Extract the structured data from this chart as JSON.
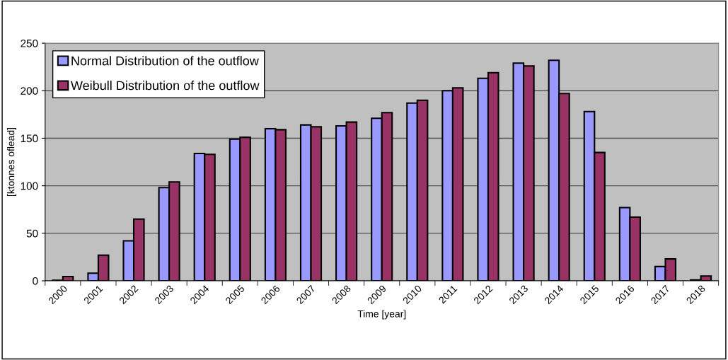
{
  "chart_data": {
    "type": "bar",
    "xlabel": "Time [year]",
    "ylabel": "[ktonnes oflead]",
    "categories": [
      "2000",
      "2001",
      "2002",
      "2003",
      "2004",
      "2005",
      "2006",
      "2007",
      "2008",
      "2009",
      "2010",
      "2011",
      "2012",
      "2013",
      "2014",
      "2015",
      "2016",
      "2017",
      "2018"
    ],
    "series": [
      {
        "name": "Normal Distribution of the outflow",
        "color": "#9999ff",
        "values": [
          0.5,
          8,
          42,
          98,
          134,
          149,
          160,
          164,
          163,
          171,
          187,
          200,
          213,
          229,
          232,
          178,
          77,
          15,
          1
        ]
      },
      {
        "name": "Weibull Distribution of the outflow",
        "color": "#993366",
        "values": [
          4.5,
          27,
          65,
          104,
          133,
          151,
          159,
          162,
          167,
          177,
          190,
          203,
          219,
          226,
          197,
          135,
          67,
          23,
          5
        ]
      }
    ],
    "ylim": [
      0,
      250
    ],
    "yticks": [
      0,
      50,
      100,
      150,
      200,
      250
    ],
    "grid": "y",
    "legend": "top left"
  }
}
